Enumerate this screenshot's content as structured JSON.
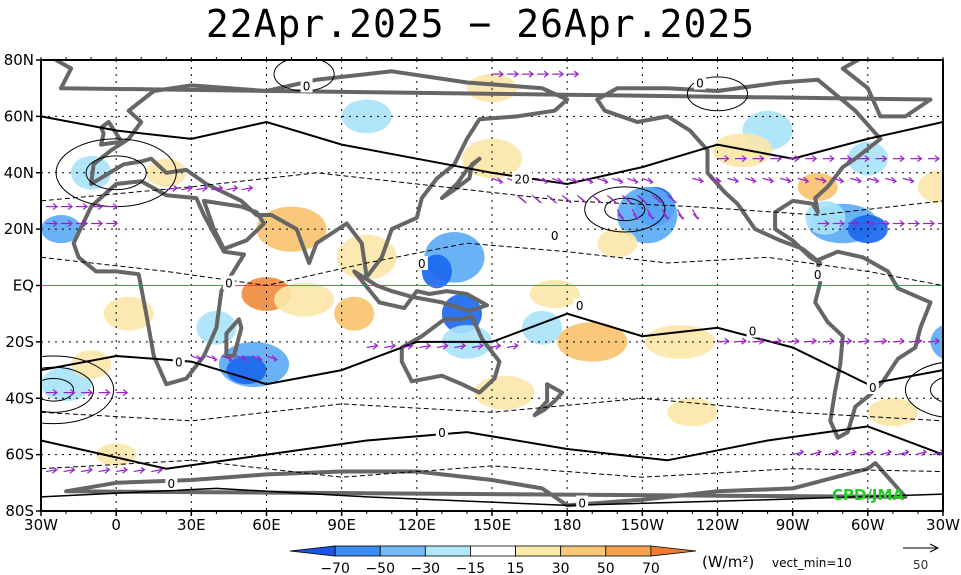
{
  "title": "22Apr.2025 − 26Apr.2025",
  "map": {
    "lat_labels": [
      "80N",
      "60N",
      "40N",
      "20N",
      "EQ",
      "20S",
      "40S",
      "60S",
      "80S"
    ],
    "lon_labels": [
      "30W",
      "0",
      "30E",
      "60E",
      "90E",
      "120E",
      "150E",
      "180",
      "150W",
      "120W",
      "90W",
      "60W",
      "30W"
    ],
    "contour_labels": [
      {
        "text": "0",
        "lon": 76,
        "lat": 71
      },
      {
        "text": "0",
        "lon": 233,
        "lat": 72
      },
      {
        "text": "0",
        "lon": 25,
        "lat": -27
      },
      {
        "text": "0",
        "lon": 45,
        "lat": 1
      },
      {
        "text": "0",
        "lon": 122,
        "lat": 8
      },
      {
        "text": "0",
        "lon": 175,
        "lat": 18
      },
      {
        "text": "20",
        "lon": 162,
        "lat": 38
      },
      {
        "text": "0",
        "lon": 185,
        "lat": -7
      },
      {
        "text": "0",
        "lon": 254,
        "lat": -16
      },
      {
        "text": "0",
        "lon": 280,
        "lat": 4
      },
      {
        "text": "0",
        "lon": 302,
        "lat": -36
      },
      {
        "text": "0",
        "lon": 130,
        "lat": -52
      },
      {
        "text": "0",
        "lon": 22,
        "lat": -70
      },
      {
        "text": "0",
        "lon": 186,
        "lat": -77
      }
    ],
    "credit": "CPD/JMA",
    "colors": {
      "neg_strong": "#1a66ee",
      "neg_mid": "#5aaaf5",
      "neg_weak": "#a8e2f8",
      "pos_weak": "#fbe7a8",
      "pos_mid": "#f8c26c",
      "pos_strong": "#f08c3a",
      "land": "#666666",
      "vector": "#9a22cc",
      "equator": "#e05050"
    }
  },
  "colorbar": {
    "boundaries": [
      "−70",
      "−50",
      "−30",
      "−15",
      "15",
      "30",
      "50",
      "70"
    ],
    "colors": [
      "#1a55e8",
      "#3a8cf2",
      "#73baf6",
      "#b2e6f8",
      "#ffffff",
      "#fbeaaa",
      "#f8c878",
      "#f4a24c",
      "#f07a2e"
    ],
    "unit": "(W/m²)",
    "vect_min": "vect_min=10"
  },
  "reference_vector": {
    "value": "50"
  }
}
